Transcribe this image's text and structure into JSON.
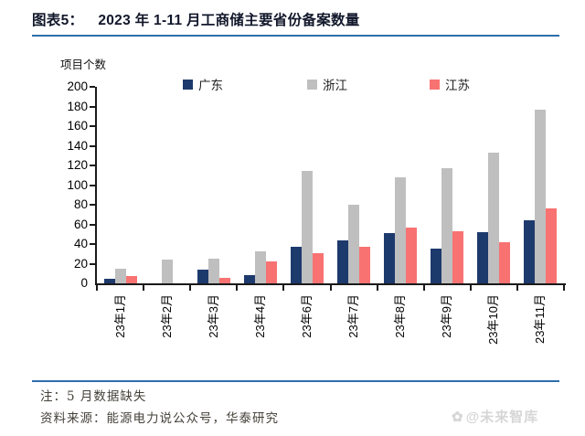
{
  "header": {
    "figure_label": "图表5：",
    "title": "2023 年 1-11 月工商储主要省份备案数量"
  },
  "chart_data": {
    "type": "bar",
    "title": "2023 年 1-11 月工商储主要省份备案数量",
    "unit_label": "项目个数",
    "ylabel": "项目个数",
    "xlabel": "",
    "ylim": [
      0,
      200
    ],
    "ytick_step": 20,
    "grid": false,
    "legend_position": "top",
    "categories": [
      "23年1月",
      "23年2月",
      "23年3月",
      "23年4月",
      "23年6月",
      "23年7月",
      "23年8月",
      "23年9月",
      "23年10月",
      "23年11月"
    ],
    "series": [
      {
        "name": "广东",
        "color": "#1d3a6d",
        "values": [
          5,
          0,
          14,
          8,
          37,
          44,
          51,
          35,
          52,
          64
        ]
      },
      {
        "name": "浙江",
        "color": "#bfbfbf",
        "values": [
          15,
          24,
          25,
          33,
          114,
          80,
          108,
          117,
          133,
          177
        ]
      },
      {
        "name": "江苏",
        "color": "#f87272",
        "values": [
          7,
          0,
          6,
          22,
          31,
          37,
          57,
          53,
          42,
          76
        ]
      }
    ]
  },
  "footer": {
    "note": "注：5 月数据缺失",
    "source": "资料来源：能源电力说公众号，华泰研究",
    "watermark_icon": "✿",
    "watermark": "@未来智库"
  },
  "colors": {
    "accent_line": "#2c6fad",
    "axis": "#1a1a1a",
    "bar_guangdong": "#1d3a6d",
    "bar_zhejiang": "#bfbfbf",
    "bar_jiangsu": "#f87272",
    "footer_text": "#45413a",
    "watermark": "#d6d6d6"
  }
}
